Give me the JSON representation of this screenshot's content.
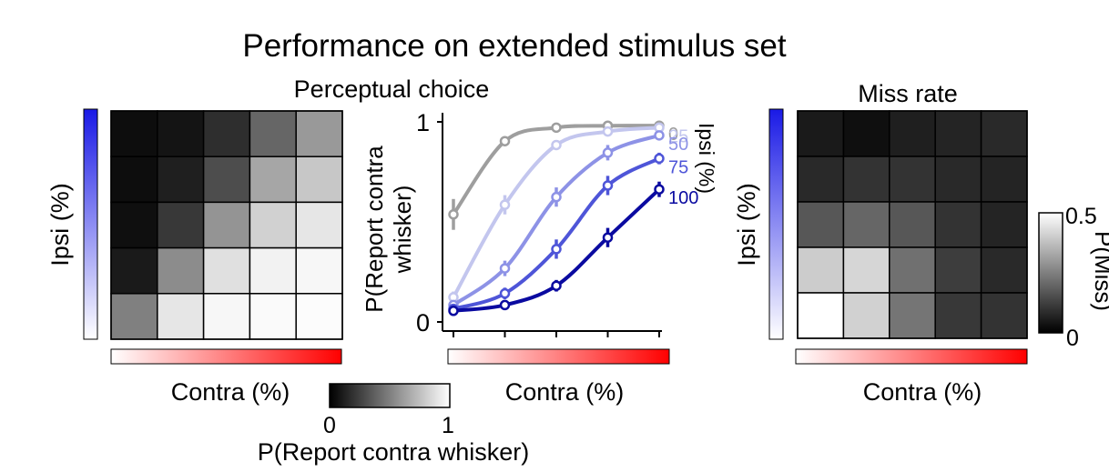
{
  "title": "Performance on extended stimulus set",
  "chart_data": [
    {
      "type": "heatmap",
      "title": "Perceptual choice",
      "xlabel": "Contra (%)",
      "ylabel": "Ipsi (%)",
      "rows_order": "top row = highest ipsi",
      "values": [
        [
          0.05,
          0.08,
          0.18,
          0.4,
          0.6
        ],
        [
          0.05,
          0.12,
          0.3,
          0.65,
          0.78
        ],
        [
          0.06,
          0.22,
          0.58,
          0.82,
          0.9
        ],
        [
          0.1,
          0.55,
          0.88,
          0.95,
          0.97
        ],
        [
          0.5,
          0.9,
          0.97,
          0.98,
          0.99
        ]
      ],
      "colorbar": {
        "label": "P(Report contra whisker)",
        "min_label": "0",
        "max_label": "1",
        "min": 0,
        "max": 1
      },
      "x_gradient": [
        "#ffffff",
        "#ff0000"
      ],
      "y_gradient": [
        "#ffffff",
        "#1a1ae6"
      ]
    },
    {
      "type": "line",
      "xlabel": "Contra (%)",
      "ylabel": "P(Report contra whisker)",
      "ylim": [
        0,
        1
      ],
      "yticks": [
        "0",
        "1"
      ],
      "x": [
        0,
        25,
        50,
        75,
        100
      ],
      "legend_title": "Ipsi (%)",
      "series": [
        {
          "name": "0",
          "color": "#9e9e9e",
          "values": [
            0.52,
            0.9,
            0.97,
            0.98,
            0.98
          ],
          "err": [
            0.08,
            0.02,
            0.01,
            0.01,
            0.01
          ]
        },
        {
          "name": "25",
          "color": "#c3c6ee",
          "values": [
            0.09,
            0.57,
            0.88,
            0.95,
            0.97
          ],
          "err": [
            0.03,
            0.05,
            0.02,
            0.02,
            0.02
          ]
        },
        {
          "name": "50",
          "color": "#8d92e6",
          "values": [
            0.05,
            0.24,
            0.61,
            0.84,
            0.93
          ],
          "err": [
            0.02,
            0.04,
            0.05,
            0.04,
            0.02
          ]
        },
        {
          "name": "75",
          "color": "#4e55d8",
          "values": [
            0.03,
            0.11,
            0.34,
            0.67,
            0.81
          ],
          "err": [
            0.02,
            0.03,
            0.05,
            0.05,
            0.03
          ]
        },
        {
          "name": "100",
          "color": "#0a0aa0",
          "values": [
            0.02,
            0.05,
            0.15,
            0.4,
            0.65
          ],
          "err": [
            0.02,
            0.02,
            0.03,
            0.05,
            0.04
          ]
        }
      ],
      "x_gradient": [
        "#ffffff",
        "#ff0000"
      ]
    },
    {
      "type": "heatmap",
      "title": "Miss rate",
      "xlabel": "Contra (%)",
      "ylabel": "Ipsi (%)",
      "rows_order": "top row = highest ipsi",
      "values": [
        [
          0.05,
          0.03,
          0.06,
          0.07,
          0.08
        ],
        [
          0.08,
          0.1,
          0.1,
          0.08,
          0.07
        ],
        [
          0.17,
          0.2,
          0.17,
          0.1,
          0.07
        ],
        [
          0.4,
          0.42,
          0.22,
          0.12,
          0.08
        ],
        [
          0.5,
          0.41,
          0.23,
          0.11,
          0.1
        ]
      ],
      "colorbar": {
        "label": "P(Miss)",
        "min_label": "0",
        "max_label": "0.5",
        "min": 0,
        "max": 0.5
      },
      "x_gradient": [
        "#ffffff",
        "#ff0000"
      ],
      "y_gradient": [
        "#ffffff",
        "#1a1ae6"
      ]
    }
  ]
}
